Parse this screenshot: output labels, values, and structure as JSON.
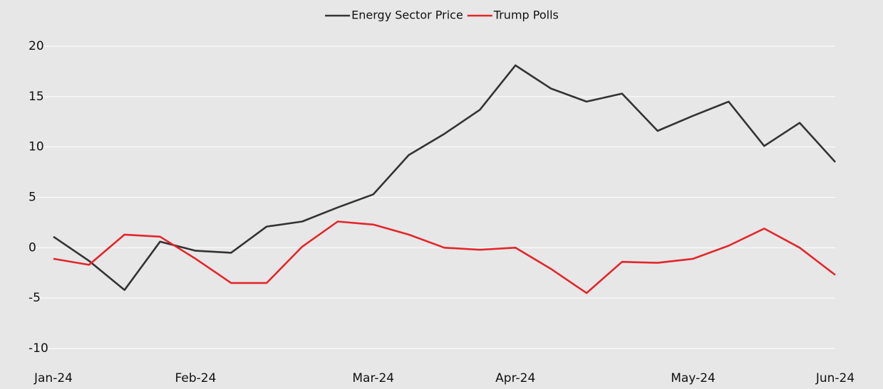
{
  "chart_data": {
    "type": "line",
    "categories": [
      "Jan-24",
      null,
      null,
      null,
      "Feb-24",
      null,
      null,
      null,
      null,
      "Mar-24",
      null,
      null,
      null,
      "Apr-24",
      null,
      null,
      null,
      null,
      "May-24",
      null,
      null,
      null,
      "Jun-24"
    ],
    "series": [
      {
        "name": "Energy Sector Price",
        "color": "#333333",
        "values": [
          1.1,
          -1.3,
          -4.2,
          0.6,
          -0.3,
          -0.5,
          2.1,
          2.6,
          4.0,
          5.3,
          9.2,
          11.3,
          13.7,
          18.1,
          15.8,
          14.5,
          15.3,
          11.6,
          13.1,
          14.5,
          10.1,
          12.4,
          8.5
        ]
      },
      {
        "name": "Trump Polls",
        "color": "#e3262b",
        "values": [
          -1.1,
          -1.7,
          1.3,
          1.1,
          -1.1,
          -3.5,
          -3.5,
          0.1,
          2.6,
          2.3,
          1.3,
          0.0,
          -0.2,
          0.0,
          -2.1,
          -4.5,
          -1.4,
          -1.5,
          -1.1,
          0.2,
          1.9,
          0.0,
          -2.7
        ]
      }
    ],
    "ylim": [
      -10,
      20
    ],
    "yticks": [
      -10,
      -5,
      0,
      5,
      10,
      15,
      20
    ],
    "grid": true,
    "legend": "top"
  }
}
